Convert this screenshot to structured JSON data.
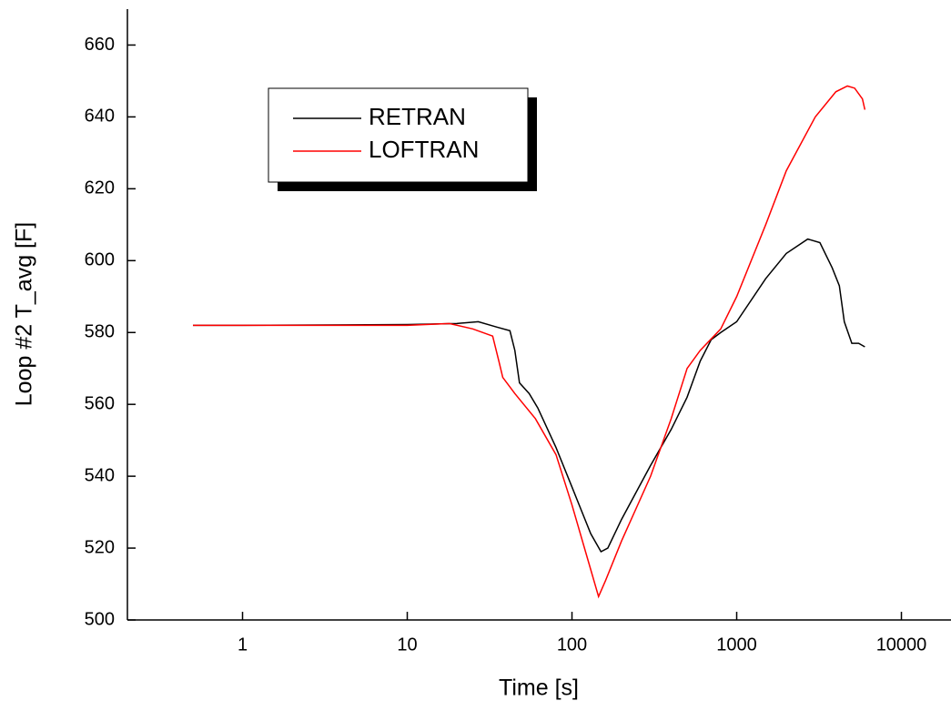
{
  "chart_data": {
    "type": "line",
    "x_label": "Time [s]",
    "y_label": "Loop #2 T_avg [F]",
    "x_scale": "log",
    "xlim": [
      0.2,
      20000
    ],
    "xticks": [
      1,
      10,
      100,
      1000,
      10000
    ],
    "ylim": [
      500,
      670
    ],
    "yticks": [
      500,
      520,
      540,
      560,
      580,
      600,
      620,
      640,
      660
    ],
    "legend_position": "upper left",
    "series": [
      {
        "name": "RETRAN",
        "color": "#000000",
        "x": [
          0.5,
          1,
          10,
          20,
          27,
          35,
          42,
          45,
          48,
          55,
          62,
          80,
          100,
          130,
          150,
          165,
          200,
          300,
          400,
          500,
          600,
          700,
          800,
          1000,
          1500,
          2000,
          2700,
          3200,
          3800,
          4200,
          4500,
          5000,
          5500,
          6000
        ],
        "values": [
          582,
          582,
          582.2,
          582.5,
          583,
          581.5,
          580.5,
          575,
          566,
          563,
          559,
          548,
          537,
          524,
          519,
          520,
          528,
          543,
          553,
          562,
          572,
          578,
          580,
          583,
          595,
          602,
          606,
          605,
          598,
          593,
          583,
          577,
          577,
          576
        ]
      },
      {
        "name": "LOFTRAN",
        "color": "#ff0000",
        "x": [
          0.5,
          10,
          18,
          25,
          33,
          36,
          38,
          45,
          60,
          80,
          100,
          130,
          145,
          160,
          200,
          300,
          400,
          500,
          600,
          800,
          1000,
          1500,
          2000,
          3000,
          4000,
          4700,
          5200,
          5800,
          6000
        ],
        "values": [
          582,
          582,
          582.5,
          581,
          579,
          572,
          567.5,
          563,
          556,
          546,
          532,
          514,
          506.5,
          511,
          522,
          540,
          556,
          570,
          575,
          581,
          590,
          610,
          625,
          640,
          647,
          648.6,
          648,
          645,
          642
        ]
      }
    ]
  }
}
